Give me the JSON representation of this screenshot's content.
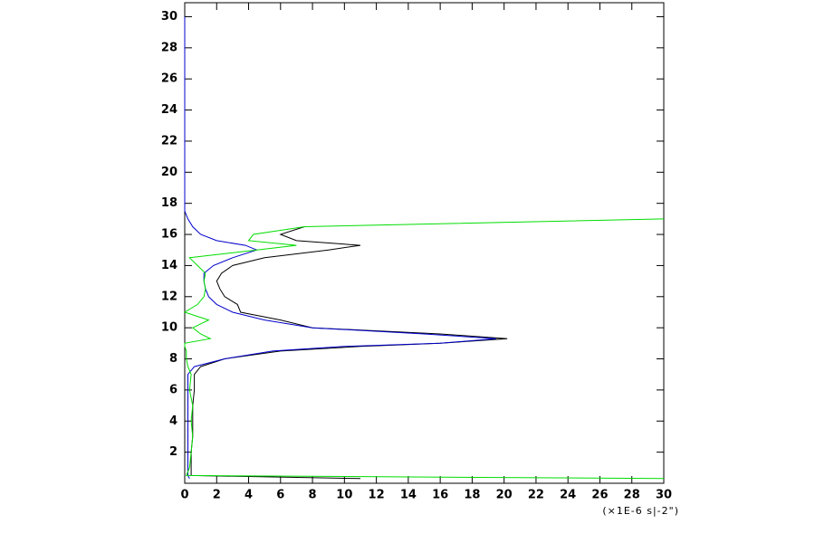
{
  "chart_data": {
    "type": "line",
    "x_label": "(×1E-6 s|-2\")",
    "y": [
      0.3,
      0.5,
      1,
      2,
      3,
      4,
      5,
      6,
      7,
      7.5,
      8,
      8.5,
      8.8,
      9,
      9.3,
      9.6,
      10,
      10.5,
      11,
      11.5,
      12,
      12.5,
      13,
      13.5,
      14,
      14.5,
      15,
      15.3,
      15.6,
      16,
      16.5,
      17,
      17.5,
      18,
      20,
      25,
      30
    ],
    "series": [
      {
        "color": "#000000",
        "values": [
          11,
          0.4,
          0.4,
          0.4,
          0.5,
          0.5,
          0.5,
          0.6,
          0.6,
          1,
          2.5,
          6,
          11,
          16,
          20.2,
          16,
          8,
          6,
          3.5,
          3.3,
          2.5,
          2.2,
          2,
          2.3,
          3,
          5,
          9,
          11,
          7,
          6,
          7.5,
          null,
          null,
          null,
          null,
          null,
          null
        ]
      },
      {
        "color": "#0000cc",
        "values": [
          0.3,
          0.2,
          0.2,
          0.2,
          0.2,
          0.2,
          0.2,
          0.2,
          0.2,
          0.6,
          2.5,
          5.5,
          10,
          16,
          19.5,
          15,
          8,
          5,
          3,
          2,
          1.5,
          1.3,
          1.2,
          1.2,
          1.8,
          3,
          4.5,
          3.8,
          2,
          1,
          0.5,
          0.2,
          0,
          0,
          0,
          0,
          0
        ]
      },
      {
        "color": "#00dd00",
        "values": [
          30,
          0.1,
          0.3,
          0.4,
          0.5,
          0.4,
          0.5,
          0.3,
          0.4,
          0.2,
          0.1,
          0.1,
          0,
          0,
          1.6,
          1,
          0.5,
          1.5,
          0,
          0.8,
          1.2,
          1.3,
          1.2,
          1.3,
          0.8,
          0.3,
          4.5,
          7,
          4,
          4.3,
          7.5,
          30,
          null,
          null,
          null,
          null,
          null
        ]
      }
    ],
    "xlim": [
      0,
      30
    ],
    "ylim": [
      0,
      30.9
    ],
    "xticks": [
      0,
      2,
      4,
      6,
      8,
      10,
      12,
      14,
      16,
      18,
      20,
      22,
      24,
      26,
      28,
      30
    ],
    "yticks": [
      2,
      4,
      6,
      8,
      10,
      12,
      14,
      16,
      18,
      20,
      22,
      24,
      26,
      28,
      30
    ]
  }
}
